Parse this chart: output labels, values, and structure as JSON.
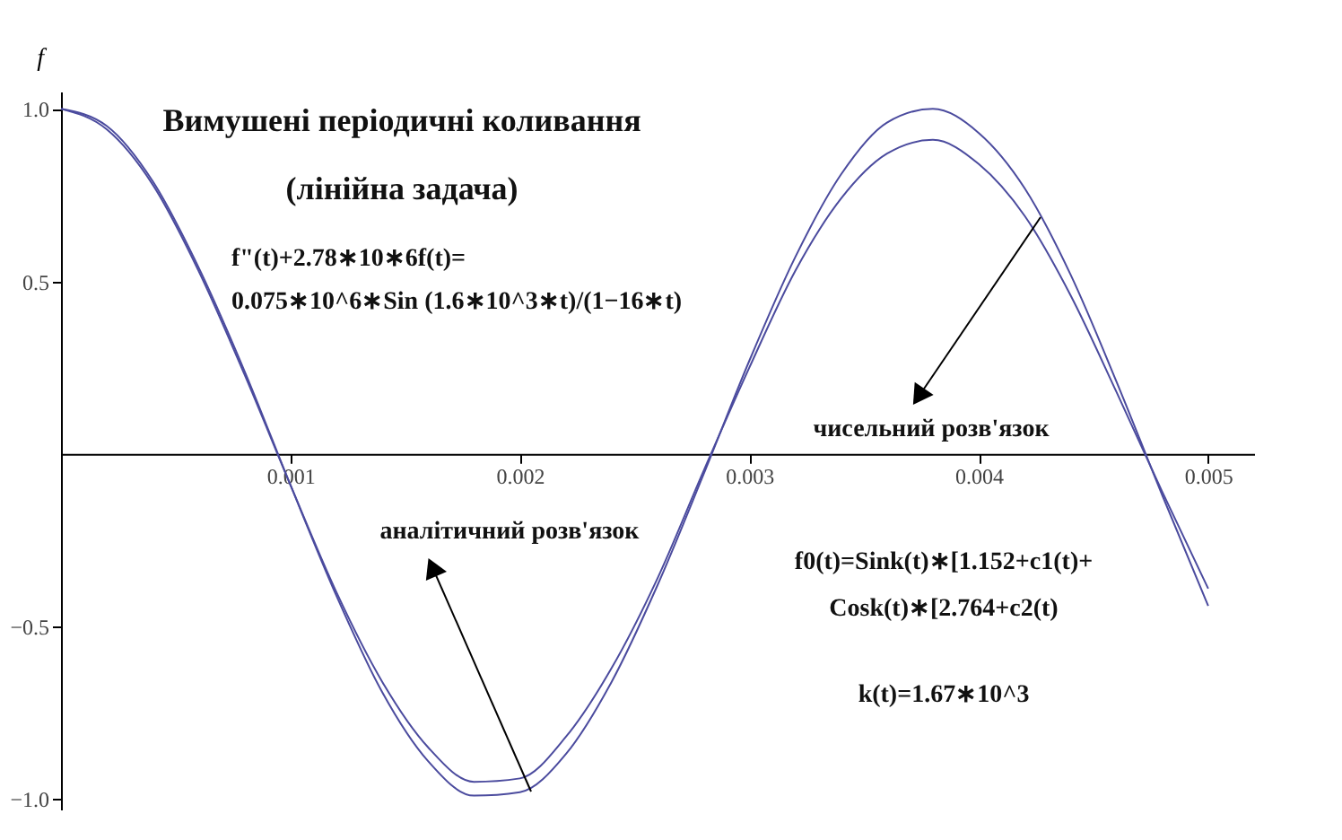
{
  "chart_data": {
    "type": "line",
    "title": "Вимушені періодичні коливання",
    "subtitle": "(лінійна задача)",
    "ylabel": "f",
    "x": [
      0,
      0.0002,
      0.0004,
      0.0006,
      0.0008,
      0.001,
      0.0012,
      0.0014,
      0.0016,
      0.0018,
      0.002,
      0.0022,
      0.0024,
      0.0026,
      0.0028,
      0.003,
      0.0032,
      0.0034,
      0.0036,
      0.0038,
      0.004,
      0.0042,
      0.0044,
      0.0046,
      0.0048,
      0.005
    ],
    "series": [
      {
        "color": "#4b4b9e",
        "values": [
          1,
          0.95,
          0.79,
          0.54,
          0.24,
          -0.09,
          -0.41,
          -0.69,
          -0.89,
          -0.99,
          -0.98,
          -0.87,
          -0.66,
          -0.38,
          -0.06,
          0.27,
          0.57,
          0.81,
          0.96,
          1.0,
          0.93,
          0.77,
          0.52,
          0.21,
          -0.12,
          -0.44
        ]
      },
      {
        "color": "#4b4b9e",
        "values": [
          1,
          0.94,
          0.78,
          0.53,
          0.23,
          -0.09,
          -0.4,
          -0.66,
          -0.85,
          -0.95,
          -0.94,
          -0.82,
          -0.62,
          -0.36,
          -0.05,
          0.25,
          0.53,
          0.74,
          0.87,
          0.91,
          0.84,
          0.69,
          0.46,
          0.18,
          -0.11,
          -0.39
        ]
      }
    ],
    "xlim": [
      0,
      0.0052
    ],
    "ylim": [
      -1.03,
      1.05
    ],
    "xticks": [
      0.001,
      0.002,
      0.003,
      0.004,
      0.005
    ],
    "yticks": [
      {
        "value": -1,
        "label": "−1.0"
      },
      {
        "value": -0.5,
        "label": "−0.5"
      },
      {
        "value": 0.5,
        "label": "0.5"
      },
      {
        "value": 1,
        "label": "1.0"
      }
    ],
    "annotations": [
      "f\"(t)+2.78∗10∗6f(t)=",
      "0.075∗10^6∗Sin (1.6∗10^3∗t)/(1−16∗t)",
      "чисельний розв'язок",
      "аналітичний розв'язок",
      "f0(t)=Sink(t)∗[1.152+c1(t)+",
      "Cosk(t)∗[2.764+c2(t)",
      "k(t)=1.67∗10^3"
    ],
    "grid": false,
    "marker": "none",
    "line_style": "solid"
  }
}
